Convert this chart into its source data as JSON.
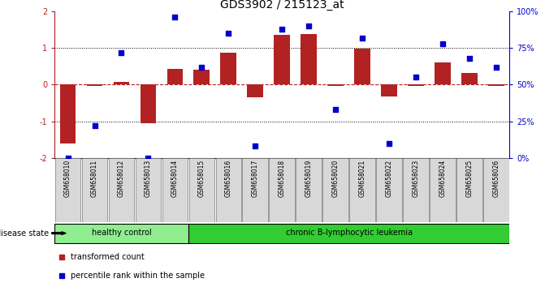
{
  "title": "GDS3902 / 215123_at",
  "samples": [
    "GSM658010",
    "GSM658011",
    "GSM658012",
    "GSM658013",
    "GSM658014",
    "GSM658015",
    "GSM658016",
    "GSM658017",
    "GSM658018",
    "GSM658019",
    "GSM658020",
    "GSM658021",
    "GSM658022",
    "GSM658023",
    "GSM658024",
    "GSM658025",
    "GSM658026"
  ],
  "bar_values": [
    -1.6,
    -0.03,
    0.08,
    -1.05,
    0.42,
    0.4,
    0.88,
    -0.35,
    1.35,
    1.38,
    -0.03,
    0.98,
    -0.32,
    -0.03,
    0.6,
    0.32,
    -0.03
  ],
  "point_values": [
    0,
    22,
    72,
    0,
    96,
    62,
    85,
    8,
    88,
    90,
    33,
    82,
    10,
    55,
    78,
    68,
    62
  ],
  "bar_color": "#B22222",
  "point_color": "#0000CC",
  "ylim_left": [
    -2,
    2
  ],
  "ylim_right": [
    0,
    100
  ],
  "yticks_left": [
    -2,
    -1,
    0,
    1,
    2
  ],
  "yticks_right": [
    0,
    25,
    50,
    75,
    100
  ],
  "ytick_labels_right": [
    "0%",
    "25%",
    "50%",
    "75%",
    "100%"
  ],
  "dotted_hlines": [
    -1.0,
    1.0
  ],
  "group1_count": 5,
  "group1_label": "healthy control",
  "group2_label": "chronic B-lymphocytic leukemia",
  "group1_color": "#90EE90",
  "group2_color": "#32CD32",
  "disease_state_label": "disease state",
  "legend_bar_label": "transformed count",
  "legend_point_label": "percentile rank within the sample",
  "background_color": "#FFFFFF",
  "title_fontsize": 10,
  "tick_fontsize": 7,
  "sample_fontsize": 5.5,
  "group_fontsize": 7,
  "legend_fontsize": 7
}
